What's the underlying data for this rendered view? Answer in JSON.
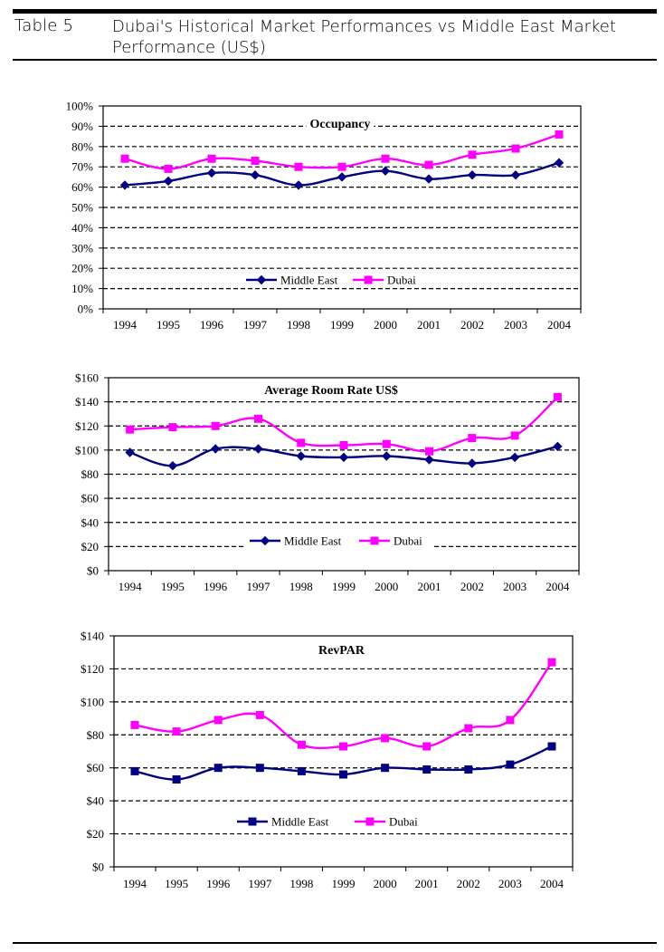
{
  "header": {
    "table_number": "Table 5",
    "title": "Dubai's Historical Market Performances vs Middle East Market Performance (US$)"
  },
  "colors": {
    "middle_east": "#000080",
    "dubai": "#ff00ff"
  },
  "chart_data": [
    {
      "type": "line",
      "title": "Occupancy",
      "categories": [
        "1994",
        "1995",
        "1996",
        "1997",
        "1998",
        "1999",
        "2000",
        "2001",
        "2002",
        "2003",
        "2004"
      ],
      "y_tick_labels": [
        "0%",
        "10%",
        "20%",
        "30%",
        "40%",
        "50%",
        "60%",
        "70%",
        "80%",
        "90%",
        "100%"
      ],
      "ylim": [
        0,
        100
      ],
      "series": [
        {
          "name": "Middle East",
          "marker": "diamond",
          "values": [
            61,
            63,
            67,
            66,
            61,
            65,
            68,
            64,
            66,
            66,
            72
          ]
        },
        {
          "name": "Dubai",
          "marker": "square",
          "values": [
            74,
            69,
            74,
            73,
            70,
            70,
            74,
            71,
            76,
            79,
            86
          ]
        }
      ],
      "legend": "inside-bottom",
      "grid": "dashed-horizontal"
    },
    {
      "type": "line",
      "title": "Average Room Rate US$",
      "categories": [
        "1994",
        "1995",
        "1996",
        "1997",
        "1998",
        "1999",
        "2000",
        "2001",
        "2002",
        "2003",
        "2004"
      ],
      "y_tick_labels": [
        "$0",
        "$20",
        "$40",
        "$60",
        "$80",
        "$100",
        "$120",
        "$140",
        "$160"
      ],
      "ylim": [
        0,
        160
      ],
      "series": [
        {
          "name": "Middle East",
          "marker": "diamond",
          "values": [
            98,
            87,
            101,
            101,
            95,
            94,
            95,
            92,
            89,
            94,
            103
          ]
        },
        {
          "name": "Dubai",
          "marker": "square",
          "values": [
            117,
            119,
            120,
            126,
            106,
            104,
            105,
            99,
            110,
            112,
            144
          ]
        }
      ],
      "legend": "inside-bottom",
      "grid": "dashed-horizontal"
    },
    {
      "type": "line",
      "title": "RevPAR",
      "categories": [
        "1994",
        "1995",
        "1996",
        "1997",
        "1998",
        "1999",
        "2000",
        "2001",
        "2002",
        "2003",
        "2004"
      ],
      "y_tick_labels": [
        "$0",
        "$20",
        "$40",
        "$60",
        "$80",
        "$100",
        "$120",
        "$140"
      ],
      "ylim": [
        0,
        140
      ],
      "series": [
        {
          "name": "Middle East",
          "marker": "square",
          "values": [
            58,
            53,
            60,
            60,
            58,
            56,
            60,
            59,
            59,
            62,
            73
          ]
        },
        {
          "name": "Dubai",
          "marker": "square",
          "values": [
            86,
            82,
            89,
            92,
            74,
            73,
            78,
            73,
            84,
            89,
            124
          ]
        }
      ],
      "legend": "inside-bottom",
      "grid": "dashed-horizontal"
    }
  ]
}
